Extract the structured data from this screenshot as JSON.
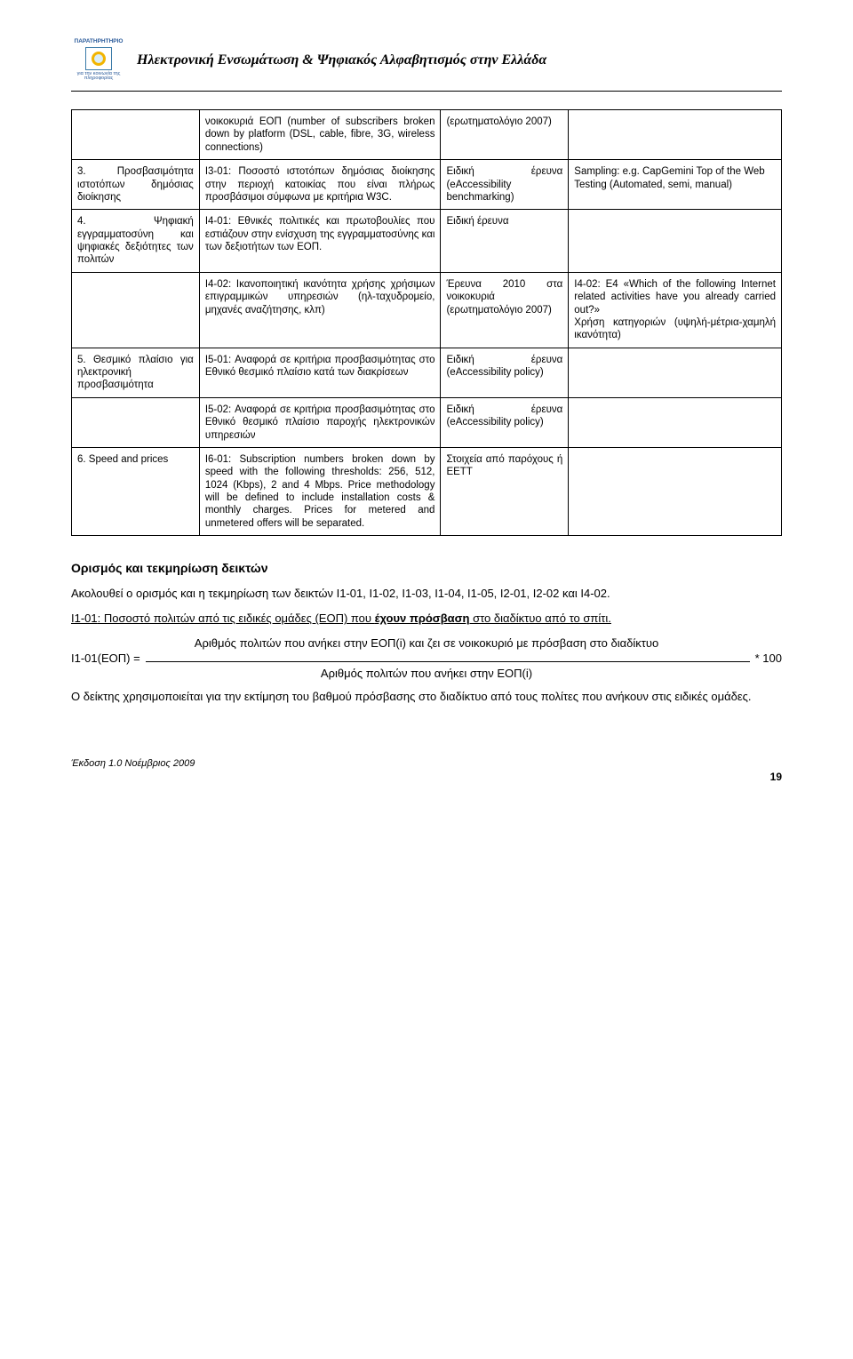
{
  "header": {
    "logo_top": "ΠΑΡΑΤΗΡΗΤΗΡΙΟ",
    "logo_bottom": "για την κοινωνία της πληροφορίας",
    "doc_title": "Ηλεκτρονική Ενσωμάτωση & Ψηφιακός Αλφαβητισμός στην Ελλάδα"
  },
  "colors": {
    "text": "#000000",
    "border": "#000000",
    "logo_blue": "#2a5a9a",
    "logo_border": "#3a7aa8",
    "logo_ring": "#f2b400",
    "logo_fill": "#d9edf7"
  },
  "table": {
    "rows": [
      {
        "c1": "",
        "c2": "νοικοκυριά ΕΟΠ (number of subscribers broken down by platform (DSL, cable, fibre, 3G, wireless connections)",
        "c3": "(ερωτηματολόγιο 2007)",
        "c4": ""
      },
      {
        "c1": "3. Προσβασιμότητα ιστοτόπων δημόσιας διοίκησης",
        "c2": "I3-01: Ποσοστό ιστοτόπων δημόσιας διοίκησης στην περιοχή κατοικίας που είναι πλήρως προσβάσιμοι σύμφωνα με κριτήρια W3C.",
        "c3": "Ειδική έρευνα (eAccessibility benchmarking)",
        "c4": "Sampling: e.g. CapGemini Top of the Web\nTesting (Automated, semi, manual)"
      },
      {
        "c1": "4. Ψηφιακή εγγραμματοσύνη και ψηφιακές δεξιότητες των πολιτών",
        "c2": "I4-01: Εθνικές πολιτικές και πρωτοβουλίες που εστιάζουν στην ενίσχυση της εγγραμματοσύνης και των δεξιοτήτων των ΕΟΠ.",
        "c3": "Ειδική έρευνα",
        "c4": ""
      },
      {
        "c1": "",
        "c2": "I4-02: Ικανοποιητική ικανότητα χρήσης χρήσιμων επιγραμμικών υπηρεσιών (ηλ-ταχυδρομείο, μηχανές αναζήτησης, κλπ)",
        "c3": "Έρευνα 2010 στα νοικοκυριά (ερωτηματολόγιο 2007)",
        "c4": "I4-02: E4 «Which of the following Internet related activities have you already carried out?»\nΧρήση κατηγοριών (υψηλή-μέτρια-χαμηλή ικανότητα)"
      },
      {
        "c1": "5. Θεσμικό πλαίσιο για ηλεκτρονική προσβασιμότητα",
        "c2": "I5-01: Αναφορά σε κριτήρια προσβασιμότητας στο Εθνικό θεσμικό πλαίσιο κατά των διακρίσεων",
        "c3": "Ειδική έρευνα (eAccessibility policy)",
        "c4": ""
      },
      {
        "c1": "",
        "c2": "I5-02: Αναφορά σε κριτήρια προσβασιμότητας στο Εθνικό θεσμικό πλαίσιο παροχής ηλεκτρονικών υπηρεσιών",
        "c3": "Ειδική έρευνα (eAccessibility policy)",
        "c4": ""
      },
      {
        "c1": "6. Speed and prices",
        "c2": "I6-01: Subscription numbers broken down by speed with the following thresholds: 256, 512, 1024 (Kbps), 2 and 4 Mbps. Price methodology will be defined to include installation costs & monthly charges. Prices for metered and unmetered offers will be separated.",
        "c3": "Στοιχεία από παρόχους ή ΕΕΤΤ",
        "c4": ""
      }
    ]
  },
  "section": {
    "heading": "Ορισμός και τεκμηρίωση δεικτών",
    "intro": "Ακολουθεί ο ορισμός και η τεκμηρίωση των δεικτών I1-01,  I1-02, I1-03, I1-04, I1-05, I2-01, I2-02 και I4-02.",
    "i101_label": "I1-01",
    "i101_rest": ": Ποσοστό πολιτών από τις ειδικές ομάδες (ΕΟΠ) που ",
    "i101_bold": "έχουν πρόσβαση",
    "i101_tail": " στο διαδίκτυο από το σπίτι.",
    "formula_top": "Αριθμός πολιτών που ανήκει στην ΕΟΠ(i) και ζει σε νοικοκυριό με πρόσβαση στο διαδίκτυο",
    "formula_lhs": "I1-01(ΕΟΠ) =",
    "formula_rhs": "* 100",
    "formula_bottom": "Αριθμός πολιτών που ανήκει στην ΕΟΠ(i)",
    "closing": "Ο δείκτης χρησιμοποιείται για την εκτίμηση του βαθμού πρόσβασης στο διαδίκτυο από τους πολίτες που ανήκουν στις ειδικές ομάδες."
  },
  "footer": {
    "edition": "Έκδοση 1.0  Νοέμβριος 2009",
    "pagenum": "19"
  }
}
